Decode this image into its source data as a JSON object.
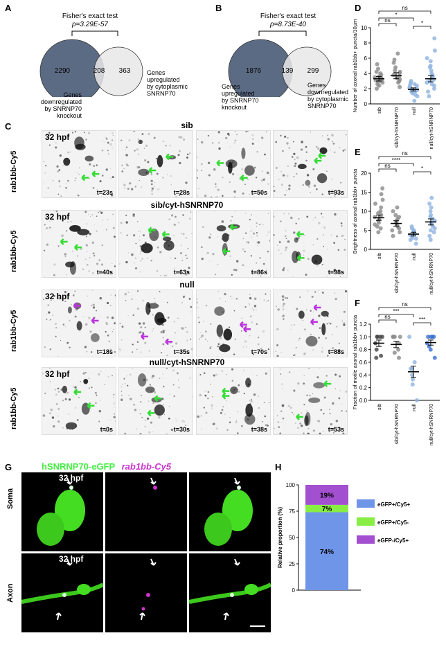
{
  "panel_labels": {
    "A": "A",
    "B": "B",
    "C": "C",
    "D": "D",
    "E": "E",
    "F": "F",
    "G": "G",
    "H": "H"
  },
  "venn_a": {
    "test": "Fisher's exact test",
    "pvalue": "p=3.29E-57",
    "left_count": "2290",
    "overlap_count": "208",
    "right_count": "363",
    "left_label": [
      "Genes",
      "downregulated",
      "by SNRNP70",
      "knockout"
    ],
    "right_label": [
      "Genes",
      "upregulated",
      "by cytoplasmic",
      "SNRNP70"
    ],
    "colors": {
      "left": "#5c6b84",
      "right": "#e8e8e8"
    }
  },
  "venn_b": {
    "test": "Fisher's exact test",
    "pvalue": "p=8.73E-40",
    "left_count": "1876",
    "overlap_count": "139",
    "right_count": "299",
    "left_label": [
      "Genes",
      "upregulated",
      "by SNRNP70",
      "knockout"
    ],
    "right_label": [
      "Genes",
      "downregulated",
      "by cytoplasmic",
      "SNRNP70"
    ]
  },
  "panel_c": {
    "hpf": "32 hpf",
    "ylabel": "rab1bb-Cy5",
    "rows": [
      {
        "title": "sib",
        "arrow_color": "#33dd33",
        "times": [
          "t=23s",
          "t=28s",
          "t=50s",
          "t=93s"
        ]
      },
      {
        "title": "sib/cyt-hSNRNP70",
        "arrow_color": "#33dd33",
        "times": [
          "t=40s",
          "t=63s",
          "t=86s",
          "t=98s"
        ]
      },
      {
        "title": "null",
        "arrow_color": "#bb33dd",
        "times": [
          "t=18s",
          "t=35s",
          "t=70s",
          "t=88s"
        ]
      },
      {
        "title": "null/cyt-hSNRNP70",
        "arrow_color": "#33dd33",
        "times": [
          "t=0s",
          "t=30s",
          "t=38s",
          "t=53s"
        ]
      }
    ]
  },
  "panel_g": {
    "title_green": "hSNRNP70-eGFP",
    "title_magenta": "rab1bb-Cy5",
    "hpf": "32 hpf",
    "rows": [
      "Soma",
      "Axon"
    ]
  },
  "chart_data": [
    {
      "type": "scatter",
      "panel": "D",
      "ylabel": "Number of axonal rab1bb+ puncta/10µm",
      "ylim": [
        0,
        10
      ],
      "yticks": [
        "0",
        "2",
        "4",
        "6",
        "8",
        "10"
      ],
      "categories": [
        "sib",
        "sib/cyt-hSNRNP70",
        "null",
        "null/cyt-hSNRNP70"
      ],
      "means": [
        3.3,
        3.7,
        1.9,
        3.3
      ],
      "sem": [
        0.3,
        0.4,
        0.2,
        0.4
      ],
      "colors": [
        "#8a8a8a",
        "#8a8a8a",
        "#8fb3e0",
        "#8fb3e0"
      ],
      "points": [
        [
          2.0,
          2.4,
          2.6,
          2.8,
          3.0,
          3.1,
          3.2,
          3.3,
          3.4,
          3.6,
          3.8,
          4.0,
          4.2,
          4.6,
          5.2,
          2.9,
          3.5
        ],
        [
          2.2,
          2.8,
          3.0,
          3.4,
          3.6,
          3.8,
          4.0,
          4.4,
          4.8,
          5.4,
          6.6,
          3.2,
          4.2,
          5.8
        ],
        [
          0.4,
          1.0,
          1.4,
          1.6,
          1.8,
          1.9,
          2.0,
          2.1,
          2.2,
          2.4,
          2.6,
          3.0,
          1.2,
          2.8,
          2.5,
          1.7
        ],
        [
          1.0,
          1.6,
          2.0,
          2.4,
          2.8,
          3.0,
          3.2,
          3.4,
          3.6,
          4.0,
          4.4,
          5.0,
          5.6,
          6.0,
          7.0,
          8.6,
          2.6,
          3.8,
          4.8
        ]
      ],
      "comparisons": [
        {
          "from": 0,
          "to": 1,
          "label": "ns"
        },
        {
          "from": 0,
          "to": 2,
          "label": "*"
        },
        {
          "from": 2,
          "to": 3,
          "label": "*"
        },
        {
          "from": 0,
          "to": 3,
          "label": "ns"
        }
      ]
    },
    {
      "type": "scatter",
      "panel": "E",
      "ylabel": "Brightness of axonal rab1bb+ puncta",
      "ylim": [
        0,
        20
      ],
      "yticks": [
        "0",
        "5",
        "10",
        "15",
        "20"
      ],
      "categories": [
        "sib",
        "sib/cyt-hSNRNP70",
        "null",
        "null/cyt-hSNRNP70"
      ],
      "means": [
        8.3,
        6.8,
        4.0,
        7.2
      ],
      "sem": [
        0.7,
        0.7,
        0.5,
        0.8
      ],
      "colors": [
        "#8a8a8a",
        "#8a8a8a",
        "#8fb3e0",
        "#8fb3e0"
      ],
      "points": [
        [
          4.5,
          5.5,
          6.0,
          6.5,
          7.0,
          7.5,
          8.0,
          8.5,
          9.0,
          9.5,
          10.0,
          11.0,
          12.0,
          13.0,
          14.5,
          16.0
        ],
        [
          3.5,
          4.5,
          5.5,
          6.0,
          6.5,
          7.0,
          7.5,
          8.0,
          9.0,
          10.0,
          11.0,
          5.0,
          8.5
        ],
        [
          1.5,
          2.5,
          3.0,
          3.5,
          4.0,
          4.5,
          5.0,
          5.5,
          3.8,
          2.8,
          4.8,
          6.0
        ],
        [
          2.5,
          3.5,
          4.5,
          5.5,
          6.0,
          6.5,
          7.0,
          7.5,
          8.0,
          9.0,
          10.0,
          11.0,
          12.0,
          13.5,
          5.0,
          8.5
        ]
      ],
      "comparisons": [
        {
          "from": 0,
          "to": 1,
          "label": "ns"
        },
        {
          "from": 0,
          "to": 2,
          "label": "****"
        },
        {
          "from": 2,
          "to": 3,
          "label": "*"
        },
        {
          "from": 0,
          "to": 3,
          "label": "ns"
        }
      ]
    },
    {
      "type": "scatter",
      "panel": "F",
      "ylabel": "Fraction of motile axonal rab1bb+ puncta",
      "ylim": [
        0,
        1.2
      ],
      "yticks": [
        "0.0",
        "0.2",
        "0.4",
        "0.6",
        "0.8",
        "1.0",
        "1.2"
      ],
      "categories": [
        "sib",
        "sib/cyt-hSNRNP70",
        "null",
        "null/cyt-hSNRNP70"
      ],
      "means": [
        0.9,
        0.88,
        0.45,
        0.91
      ],
      "sem": [
        0.05,
        0.05,
        0.09,
        0.04
      ],
      "colors": [
        "#444444",
        "#8a8a8a",
        "#8fb3e0",
        "#3a6fcf"
      ],
      "points": [
        [
          1.0,
          1.0,
          1.0,
          0.9,
          0.8,
          0.7,
          0.67,
          1.0
        ],
        [
          1.0,
          1.0,
          0.9,
          0.8,
          0.75,
          0.67,
          1.0,
          1.0
        ],
        [
          1.0,
          0.5,
          0.4,
          0.33,
          0.25,
          0.0,
          0.5,
          0.6
        ],
        [
          1.0,
          1.0,
          1.0,
          0.9,
          0.8,
          0.67,
          1.0,
          0.85
        ]
      ],
      "comparisons": [
        {
          "from": 0,
          "to": 1,
          "label": "ns"
        },
        {
          "from": 0,
          "to": 2,
          "label": "***"
        },
        {
          "from": 2,
          "to": 3,
          "label": "***"
        },
        {
          "from": 0,
          "to": 3,
          "label": "ns"
        }
      ]
    },
    {
      "type": "bar",
      "panel": "H",
      "stacked": true,
      "ylabel": "Relative proportion (%)",
      "ylim": [
        0,
        100
      ],
      "yticks": [
        "0",
        "25",
        "50",
        "75",
        "100"
      ],
      "segments": [
        {
          "name": "eGFP+/Cy5+",
          "value": 74,
          "label": "74%",
          "color": "#6f95e8"
        },
        {
          "name": "eGFP+/Cy5-",
          "value": 7,
          "label": "7%",
          "color": "#88ee44"
        },
        {
          "name": "eGFP-/Cy5+",
          "value": 19,
          "label": "19%",
          "color": "#a24fd0"
        }
      ]
    }
  ]
}
